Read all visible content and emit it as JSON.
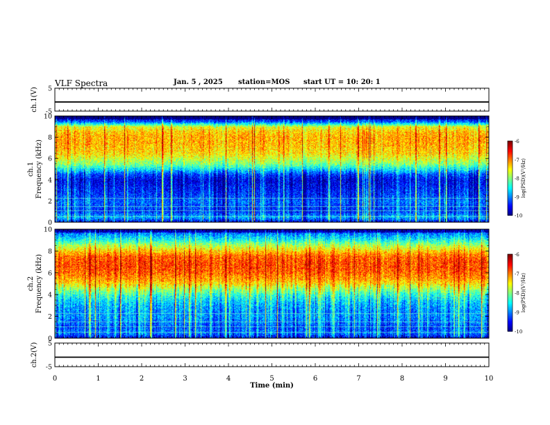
{
  "header": {
    "title": "VLF Spectra",
    "date": "Jan. 5 , 2025",
    "station": "station=MOS",
    "start": "start UT =  10: 20: 1"
  },
  "chart_data": [
    {
      "type": "line",
      "ylabel": "ch.1(V)",
      "ylim": [
        -5,
        5
      ],
      "yticks": [
        "5",
        "-5"
      ],
      "series": [
        {
          "values": [
            -1,
            -1,
            -1,
            -1,
            -1,
            -1,
            -1,
            -1,
            -1,
            -1,
            -1
          ]
        }
      ],
      "x": [
        0,
        1,
        2,
        3,
        4,
        5,
        6,
        7,
        8,
        9,
        10
      ]
    },
    {
      "type": "heatmap",
      "ylabel": "ch.1 Frequency (kHz)",
      "ylim": [
        0,
        10
      ],
      "yticks": [
        "0",
        "2",
        "4",
        "6",
        "8",
        "10"
      ],
      "xlim": [
        0,
        10
      ],
      "color_range": [
        -10,
        -6
      ],
      "colorbar_label": "log(PSD)(V²/Hz)",
      "colorbar_ticks": [
        "-6",
        "-7",
        "-8",
        "-9",
        "-10"
      ],
      "profile_khz": [
        0,
        0.5,
        1,
        1.5,
        2,
        2.5,
        3,
        3.5,
        4,
        4.5,
        5,
        5.5,
        6,
        6.5,
        7,
        7.5,
        8,
        8.5,
        9,
        9.5,
        10
      ],
      "profile_log_psd": [
        -9.6,
        -8.8,
        -9.3,
        -9.2,
        -9.1,
        -9.3,
        -9.4,
        -9.5,
        -9.6,
        -9.3,
        -8.6,
        -8.0,
        -7.7,
        -7.4,
        -7.3,
        -7.2,
        -7.2,
        -7.3,
        -7.6,
        -9.2,
        -9.9
      ]
    },
    {
      "type": "heatmap",
      "ylabel": "ch.2 Frequency (kHz)",
      "ylim": [
        0,
        10
      ],
      "yticks": [
        "0",
        "2",
        "4",
        "6",
        "8",
        "10"
      ],
      "xlim": [
        0,
        10
      ],
      "color_range": [
        -10,
        -6
      ],
      "colorbar_label": "log(PSD)(V²/Hz)",
      "colorbar_ticks": [
        "-6",
        "-7",
        "-8",
        "-9",
        "-10"
      ],
      "profile_khz": [
        0,
        0.5,
        1,
        1.5,
        2,
        2.5,
        3,
        3.5,
        4,
        4.5,
        5,
        5.5,
        6,
        6.5,
        7,
        7.5,
        8,
        8.5,
        9,
        9.5,
        10
      ],
      "profile_log_psd": [
        -9.6,
        -9.0,
        -9.2,
        -9.0,
        -8.9,
        -8.9,
        -8.8,
        -8.6,
        -8.3,
        -7.9,
        -7.4,
        -7.1,
        -6.9,
        -6.8,
        -6.8,
        -6.9,
        -7.3,
        -7.8,
        -8.4,
        -8.9,
        -9.4
      ]
    },
    {
      "type": "line",
      "ylabel": "ch.2(V)",
      "ylim": [
        -5,
        5
      ],
      "yticks": [
        "5",
        "-5"
      ],
      "series": [
        {
          "values": [
            -1,
            -1,
            -1,
            -1,
            -1,
            -1,
            -1,
            -1,
            -1,
            -1,
            -1
          ]
        }
      ],
      "x": [
        0,
        1,
        2,
        3,
        4,
        5,
        6,
        7,
        8,
        9,
        10
      ]
    }
  ],
  "xaxis": {
    "label": "Time (min)",
    "ticks": [
      "0",
      "1",
      "2",
      "3",
      "4",
      "5",
      "6",
      "7",
      "8",
      "9",
      "10"
    ]
  }
}
